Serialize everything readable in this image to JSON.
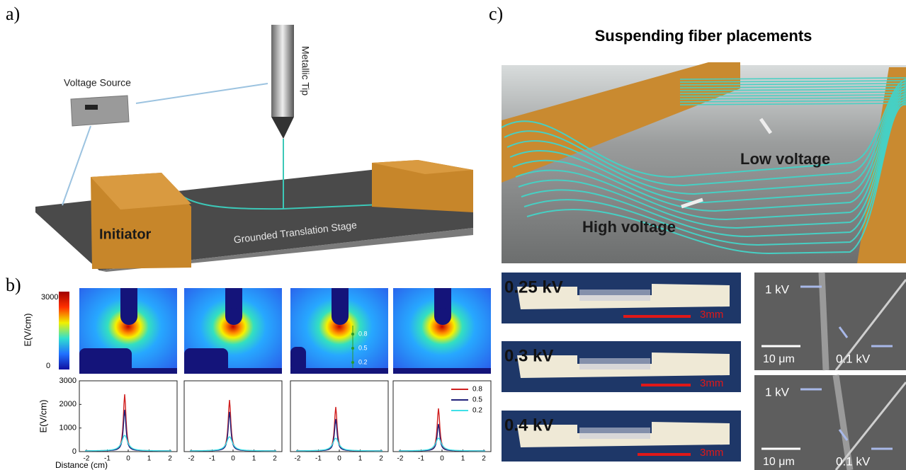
{
  "panel_a": {
    "label": "a)",
    "voltage_source": "Voltage Source",
    "metallic_tip": "Metallic Tip",
    "initiator": "Initiator",
    "stage": "Grounded Translation Stage"
  },
  "panel_b": {
    "label": "b)",
    "colorbar": {
      "max": "3000",
      "min": "0",
      "title": "E(V/cm)"
    },
    "probe_levels": [
      "0.8",
      "0.5",
      "0.2"
    ],
    "plot_yticks": [
      "3000",
      "2000",
      "1000",
      "0"
    ],
    "plot_ylabel": "E(V/cm)",
    "plot_xlabel": "Distance (cm)",
    "plots": [
      {
        "xticks": [
          "-2",
          "-1",
          "0",
          "1",
          "2"
        ]
      },
      {
        "xticks": [
          "-2",
          "-1",
          "0",
          "1",
          "2"
        ]
      },
      {
        "xticks": [
          "-2",
          "-1",
          "0",
          "1",
          "2"
        ]
      },
      {
        "xticks": [
          "-2",
          "-1",
          "0",
          "1",
          "2"
        ]
      }
    ],
    "legend": [
      "0.8",
      "0.5",
      "0.2"
    ]
  },
  "panel_c": {
    "label": "c)",
    "title": "Suspending fiber placements",
    "low_voltage": "Low voltage",
    "high_voltage": "High voltage",
    "photos": [
      {
        "voltage": "0.25 kV",
        "scale": "3mm"
      },
      {
        "voltage": "0.3 kV",
        "scale": "3mm"
      },
      {
        "voltage": "0.4 kV",
        "scale": "3mm"
      }
    ],
    "sem": [
      {
        "high": "1 kV",
        "scale": "10 μm",
        "low": "0.1 kV"
      },
      {
        "high": "1 kV",
        "scale": "10 μm",
        "low": "0.1 kV"
      }
    ]
  }
}
